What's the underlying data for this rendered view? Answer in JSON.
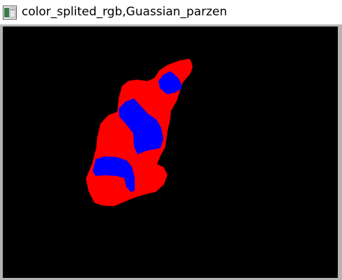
{
  "window": {
    "title": "color_splited_rgb,Guassian_parzen",
    "icon": "image-window-icon"
  },
  "image": {
    "background_color": "#000000",
    "segment_colors": {
      "primary": "#ff0000",
      "secondary": "#0000ff"
    }
  }
}
